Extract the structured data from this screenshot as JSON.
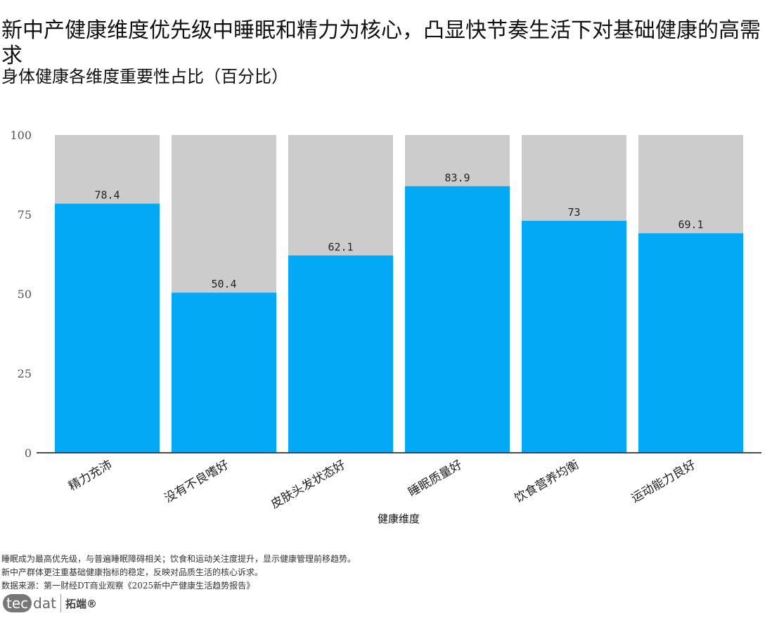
{
  "title": "新中产健康维度优先级中睡眠和精力为核心，凸显快节奏生活下对基础健康的高需求",
  "subtitle": "身体健康各维度重要性占比（百分比）",
  "chart_data": {
    "type": "bar",
    "stacked_background": true,
    "categories": [
      "精力充沛",
      "没有不良嗜好",
      "皮肤头发状态好",
      "睡眠质量好",
      "饮食营养均衡",
      "运动能力良好"
    ],
    "values": [
      78.4,
      50.4,
      62.1,
      83.9,
      73,
      69.1
    ],
    "value_labels": [
      "78.4",
      "50.4",
      "62.1",
      "83.9",
      "73",
      "69.1"
    ],
    "xlabel": "健康维度",
    "ylabel": "",
    "ylim": [
      0,
      100
    ],
    "yticks": [
      0,
      25,
      50,
      75,
      100
    ],
    "ytick_labels": [
      "0",
      "25",
      "50",
      "75",
      "100"
    ],
    "grid": false,
    "colors": {
      "bar": "#03A9F4",
      "background": "#CCCCCC"
    }
  },
  "notes": [
    "睡眠成为最高优先级，与普遍睡眠障碍相关；饮食和运动关注度提升，显示健康管理前移趋势。",
    "新中产群体更注重基础健康指标的稳定，反映对品质生活的核心诉求。",
    "数据来源：第一财经DT商业观察《2025新中产健康生活趋势报告》"
  ],
  "logo": {
    "tec": "tec",
    "dat": "dat",
    "cn": "拓端®"
  }
}
